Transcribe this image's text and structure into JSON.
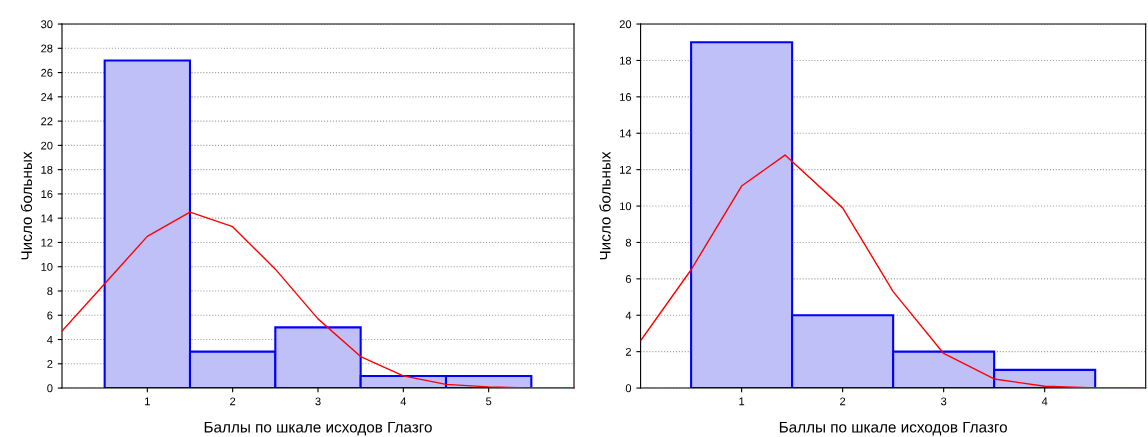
{
  "chart_data": [
    {
      "type": "histogram",
      "xlabel": "Баллы по шкале исходов Глазго",
      "ylabel": "Число больных",
      "xlim": [
        0,
        6
      ],
      "xticks": [
        1,
        2,
        3,
        4,
        5
      ],
      "ylim": [
        0,
        30
      ],
      "yticks": [
        0,
        2,
        4,
        6,
        8,
        10,
        12,
        14,
        16,
        18,
        20,
        22,
        24,
        26,
        28,
        30
      ],
      "grid": "y",
      "series": [
        {
          "type": "histogram",
          "color": "#c0c0f8",
          "bins": [
            0.5,
            1.5,
            2.5,
            3.5,
            4.5,
            5.5
          ],
          "values": [
            27,
            3,
            5,
            1,
            1
          ]
        },
        {
          "type": "line",
          "color": "#ff0000",
          "x": [
            0,
            0.5,
            1,
            1.5,
            2,
            2.5,
            3,
            3.5,
            4,
            4.5,
            5,
            5.5,
            6
          ],
          "values": [
            4.7,
            8.6,
            12.5,
            14.5,
            13.3,
            9.8,
            5.7,
            2.6,
            1.0,
            0.3,
            0.1,
            0,
            0
          ]
        }
      ]
    },
    {
      "type": "histogram",
      "xlabel": "Баллы по шкале исходов Глазго",
      "ylabel": "Число больных",
      "xlim": [
        0,
        5
      ],
      "xticks": [
        1,
        2,
        3,
        4
      ],
      "ylim": [
        0,
        20
      ],
      "yticks": [
        0,
        2,
        4,
        6,
        8,
        10,
        12,
        14,
        16,
        18,
        20
      ],
      "grid": "y",
      "series": [
        {
          "type": "histogram",
          "color": "#c0c0f8",
          "bins": [
            0.5,
            1.5,
            2.5,
            3.5,
            4.5
          ],
          "values": [
            19,
            4,
            2,
            1
          ]
        },
        {
          "type": "line",
          "color": "#ff0000",
          "x": [
            0,
            0.5,
            1,
            1.43,
            2,
            2.5,
            3,
            3.5,
            4,
            4.5,
            5
          ],
          "values": [
            2.6,
            6.5,
            11.1,
            12.8,
            9.9,
            5.3,
            1.9,
            0.5,
            0.1,
            0,
            0
          ]
        }
      ]
    }
  ]
}
